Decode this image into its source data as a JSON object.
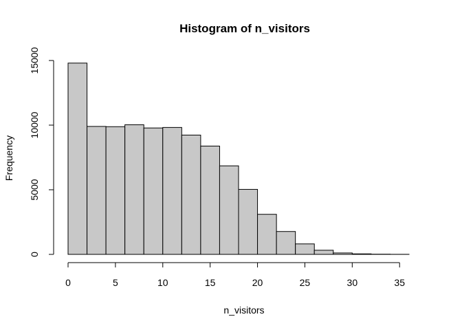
{
  "chart_data": {
    "type": "bar",
    "title": "Histogram of n_visitors",
    "xlabel": "n_visitors",
    "ylabel": "Frequency",
    "xlim": [
      0,
      36
    ],
    "ylim": [
      0,
      15000
    ],
    "x_ticks": [
      0,
      5,
      10,
      15,
      20,
      25,
      30,
      35
    ],
    "y_ticks": [
      0,
      5000,
      10000,
      15000
    ],
    "bin_edges": [
      0,
      2,
      4,
      6,
      8,
      10,
      12,
      14,
      16,
      18,
      20,
      22,
      24,
      26,
      28,
      30,
      32,
      34,
      36
    ],
    "values": [
      14800,
      9900,
      9880,
      10030,
      9780,
      9820,
      9230,
      8380,
      6850,
      5030,
      3100,
      1770,
      810,
      320,
      110,
      40,
      15,
      5
    ],
    "bar_fill": "#c8c8c8",
    "bar_stroke": "#000000",
    "grid": false
  }
}
